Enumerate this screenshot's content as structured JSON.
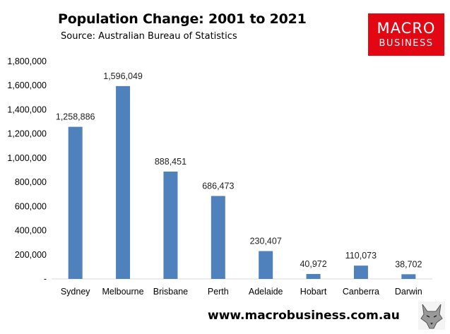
{
  "header": {
    "title": "Population Change: 2001 to 2021",
    "subtitle": "Source: Australian Bureau of Statistics"
  },
  "logo": {
    "line1": "MACRO",
    "line2": "BUSINESS",
    "color": "#e30613"
  },
  "footer": {
    "url": "www.macrobusiness.com.au",
    "icon": "wolf-head-icon"
  },
  "chart_data": {
    "type": "bar",
    "title": "Population Change: 2001 to 2021",
    "subtitle": "Source: Australian Bureau of Statistics",
    "categories": [
      "Sydney",
      "Melbourne",
      "Brisbane",
      "Perth",
      "Adelaide",
      "Hobart",
      "Canberra",
      "Darwin"
    ],
    "values": [
      1258886,
      1596049,
      888451,
      686473,
      230407,
      40972,
      110073,
      38702
    ],
    "value_labels": [
      "1,258,886",
      "1,596,049",
      "888,451",
      "686,473",
      "230,407",
      "40,972",
      "110,073",
      "38,702"
    ],
    "ylim": [
      0,
      1800000
    ],
    "yticks": [
      0,
      200000,
      400000,
      600000,
      800000,
      1000000,
      1200000,
      1400000,
      1600000,
      1800000
    ],
    "ytick_labels": [
      "-",
      "200,000",
      "400,000",
      "600,000",
      "800,000",
      "1,000,000",
      "1,200,000",
      "1,400,000",
      "1,600,000",
      "1,800,000"
    ],
    "xlabel": "",
    "ylabel": "",
    "grid": false,
    "legend": "none",
    "bar_color": "#4f81bd"
  }
}
